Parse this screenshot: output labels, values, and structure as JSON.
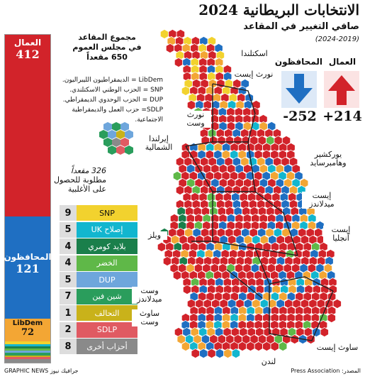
{
  "title": "الانتخابات البريطانية 2024",
  "subtitle": "صافي التغيير في المقاعد",
  "period": "(2024-2019)",
  "totals": {
    "line1": "مجموع المقاعد",
    "line2": "في مجلس العموم",
    "line3": "650 مقعداً"
  },
  "abbreviations": [
    "LibDem = الديمقراطيون الليبراليون.",
    "SNP = الحزب الوطني الاسكتلندي.",
    "DUP = الحزب الوحدوي الديمقراطي.",
    "SDLP= حزب العمل والديمقراطية",
    "الاجتماعية."
  ],
  "majority": {
    "line1": "326 مقعداً",
    "line2": "مطلوبة للحصول",
    "line3": "على الأغلبية"
  },
  "seat_bar": [
    {
      "name": "العمال",
      "seats": "412",
      "color": "#d2232a"
    },
    {
      "name": "المحافظون",
      "seats": "121",
      "color": "#1f6fc2"
    },
    {
      "name": "LibDem",
      "seats": "72",
      "color": "#f3a634"
    }
  ],
  "legend": [
    {
      "count": "9",
      "name": "SNP",
      "color": "#f2d22e"
    },
    {
      "count": "5",
      "name": "إصلاح UK",
      "color": "#12b6cf"
    },
    {
      "count": "4",
      "name": "بلايد كومري",
      "color": "#1a7f4b"
    },
    {
      "count": "4",
      "name": "الخضر",
      "color": "#5fb848"
    },
    {
      "count": "5",
      "name": "DUP",
      "color": "#6ea6dc"
    },
    {
      "count": "7",
      "name": "شين فين",
      "color": "#2a9d5c"
    },
    {
      "count": "1",
      "name": "التحالف",
      "color": "#c9b21a"
    },
    {
      "count": "2",
      "name": "SDLP",
      "color": "#e05a62"
    },
    {
      "count": "8",
      "name": "أحزاب أخرى",
      "color": "#8a8a8a"
    }
  ],
  "changes": {
    "labour_label": "العمال",
    "labour_change": "+214",
    "cons_label": "المحافظون",
    "cons_change": "-252"
  },
  "regions": {
    "scotland": "اسكتلندا",
    "north_east": "نورث إيست",
    "north_west": "نورث وست",
    "northern_ireland": "إيرلندا الشمالية",
    "yorkshire": "يوركشير وهامبرسايد",
    "east_midlands": "إيست ميدلاندز",
    "east_anglia": "إيست أنجليا",
    "wales": "ويلز",
    "west_midlands": "وست ميدلاندز",
    "south_west": "ساوث وست",
    "london": "لندن",
    "south_east": "ساوث إيست"
  },
  "footer": {
    "source": "المصدر: Press Association",
    "credit": "GRAPHIC NEWS جرافيك نيوز"
  },
  "map_colors": {
    "labour": "#d2232a",
    "conservative": "#1f6fc2",
    "libdem": "#f3a634",
    "snp": "#f2d22e",
    "reform": "#12b6cf",
    "plaid": "#1a7f4b",
    "green": "#5fb848",
    "dup": "#6ea6dc",
    "sinn_fein": "#2a9d5c",
    "alliance": "#c9b21a",
    "sdlp": "#e05a62",
    "other": "#8a8a8a"
  }
}
